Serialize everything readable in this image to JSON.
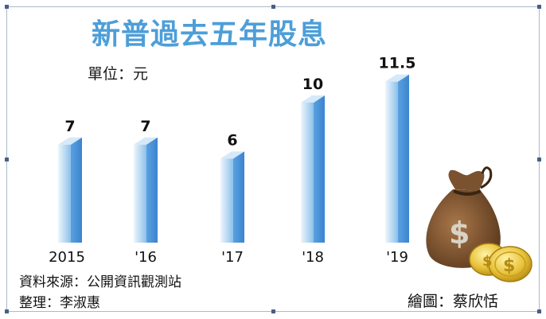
{
  "title": "新普過去五年股息",
  "unit_label": "單位：元",
  "source": "資料來源：公開資訊觀測站",
  "editor": "整理：李淑惠",
  "illustrator": "繪圖：蔡欣恬",
  "colors": {
    "title": "#4d9ed8",
    "bar_front_light": "#e6f1fb",
    "bar_front_dark": "#7fb7e6",
    "bar_side": "#4a92d8",
    "bar_top": "#d5e9f8"
  },
  "icons": [
    "money-bag-icon",
    "dollar-coin-icon"
  ],
  "chart_data": {
    "type": "bar",
    "categories": [
      "2015",
      "'16",
      "'17",
      "'18",
      "'19"
    ],
    "values": [
      7,
      7,
      6,
      10,
      11.5
    ],
    "value_labels": [
      "7",
      "7",
      "6",
      "10",
      "11.5"
    ],
    "ylim": [
      0,
      12
    ],
    "grid": false,
    "legend": "none"
  }
}
